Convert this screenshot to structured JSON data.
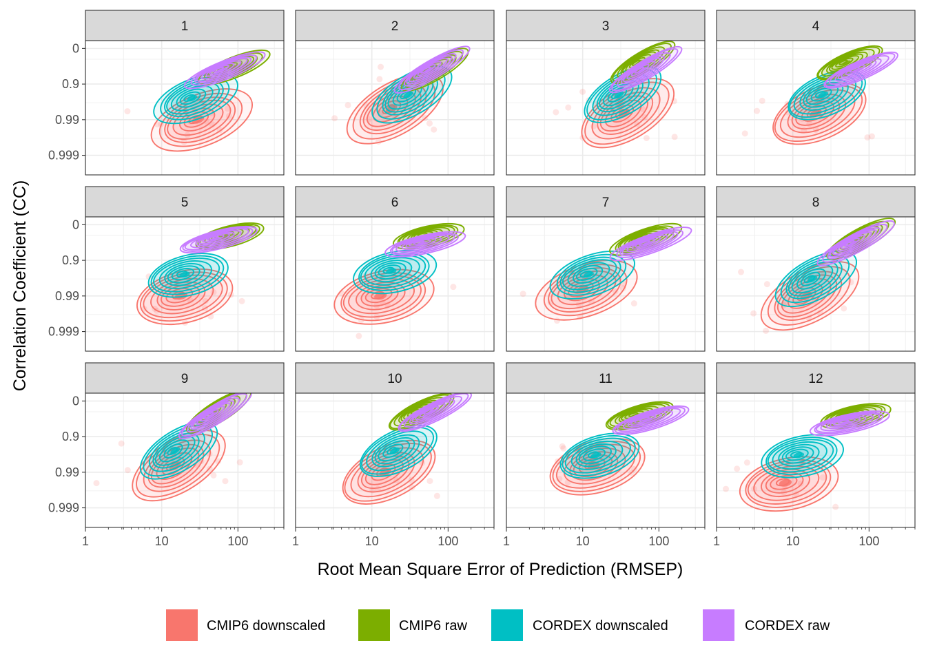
{
  "chart_data": {
    "type": "contour",
    "subtype": "faceted 2D density contour with scatter points",
    "xlabel": "Root Mean Square Error of Prediction (RMSEP)",
    "ylabel": "Correlation Coefficient (CC)",
    "x_scale": "log10",
    "xlim": [
      1,
      400
    ],
    "x_ticks": [
      1,
      10,
      100
    ],
    "x_tick_labels": [
      "1",
      "10",
      "100"
    ],
    "y_scale": "log10(1 - CC), reversed",
    "ylim": [
      0,
      0.9997
    ],
    "y_ticks": [
      0,
      0.9,
      0.99,
      0.999
    ],
    "y_tick_labels": [
      "0",
      "0.9",
      "0.99",
      "0.999"
    ],
    "grid": true,
    "legend_position": "bottom",
    "legend": [
      {
        "label": "CMIP6 downscaled",
        "color": "#F8766D"
      },
      {
        "label": "CMIP6 raw",
        "color": "#7CAE00"
      },
      {
        "label": "CORDEX downscaled",
        "color": "#00BFC4"
      },
      {
        "label": "CORDEX raw",
        "color": "#C77CFF"
      }
    ],
    "facets": [
      {
        "label": "1",
        "density_centers": {
          "CMIP6 downscaled": [
            30,
            0.99
          ],
          "CMIP6 raw": [
            80,
            0.7
          ],
          "CORDEX downscaled": [
            25,
            0.96
          ],
          "CORDEX raw": [
            60,
            0.75
          ]
        }
      },
      {
        "label": "2",
        "density_centers": {
          "CMIP6 downscaled": [
            18,
            0.98
          ],
          "CMIP6 raw": [
            60,
            0.75
          ],
          "CORDEX downscaled": [
            30,
            0.95
          ],
          "CORDEX raw": [
            55,
            0.75
          ]
        }
      },
      {
        "label": "3",
        "density_centers": {
          "CMIP6 downscaled": [
            35,
            0.985
          ],
          "CMIP6 raw": [
            55,
            0.6
          ],
          "CORDEX downscaled": [
            30,
            0.95
          ],
          "CORDEX raw": [
            60,
            0.75
          ]
        }
      },
      {
        "label": "4",
        "density_centers": {
          "CMIP6 downscaled": [
            20,
            0.985
          ],
          "CMIP6 raw": [
            50,
            0.6
          ],
          "CORDEX downscaled": [
            25,
            0.95
          ],
          "CORDEX raw": [
            70,
            0.75
          ]
        }
      },
      {
        "label": "5",
        "density_centers": {
          "CMIP6 downscaled": [
            18,
            0.99
          ],
          "CMIP6 raw": [
            70,
            0.5
          ],
          "CORDEX downscaled": [
            20,
            0.96
          ],
          "CORDEX raw": [
            50,
            0.6
          ]
        }
      },
      {
        "label": "6",
        "density_centers": {
          "CMIP6 downscaled": [
            13,
            0.99
          ],
          "CMIP6 raw": [
            50,
            0.5
          ],
          "CORDEX downscaled": [
            18,
            0.95
          ],
          "CORDEX raw": [
            45,
            0.7
          ]
        }
      },
      {
        "label": "7",
        "density_centers": {
          "CMIP6 downscaled": [
            10,
            0.985
          ],
          "CMIP6 raw": [
            60,
            0.6
          ],
          "CORDEX downscaled": [
            12,
            0.96
          ],
          "CORDEX raw": [
            70,
            0.7
          ]
        }
      },
      {
        "label": "8",
        "density_centers": {
          "CMIP6 downscaled": [
            15,
            0.99
          ],
          "CMIP6 raw": [
            70,
            0.6
          ],
          "CORDEX downscaled": [
            18,
            0.97
          ],
          "CORDEX raw": [
            60,
            0.7
          ]
        }
      },
      {
        "label": "9",
        "density_centers": {
          "CMIP6 downscaled": [
            15,
            0.985
          ],
          "CMIP6 raw": [
            50,
            0.5
          ],
          "CORDEX downscaled": [
            15,
            0.96
          ],
          "CORDEX raw": [
            45,
            0.6
          ]
        }
      },
      {
        "label": "10",
        "density_centers": {
          "CMIP6 downscaled": [
            15,
            0.99
          ],
          "CMIP6 raw": [
            40,
            0.5
          ],
          "CORDEX downscaled": [
            20,
            0.96
          ],
          "CORDEX raw": [
            60,
            0.5
          ]
        }
      },
      {
        "label": "11",
        "density_centers": {
          "CMIP6 downscaled": [
            14,
            0.985
          ],
          "CMIP6 raw": [
            50,
            0.6
          ],
          "CORDEX downscaled": [
            15,
            0.97
          ],
          "CORDEX raw": [
            70,
            0.7
          ]
        }
      },
      {
        "label": "12",
        "density_centers": {
          "CMIP6 downscaled": [
            8,
            0.995
          ],
          "CMIP6 raw": [
            60,
            0.6
          ],
          "CORDEX downscaled": [
            12,
            0.97
          ],
          "CORDEX raw": [
            50,
            0.75
          ]
        }
      }
    ]
  }
}
